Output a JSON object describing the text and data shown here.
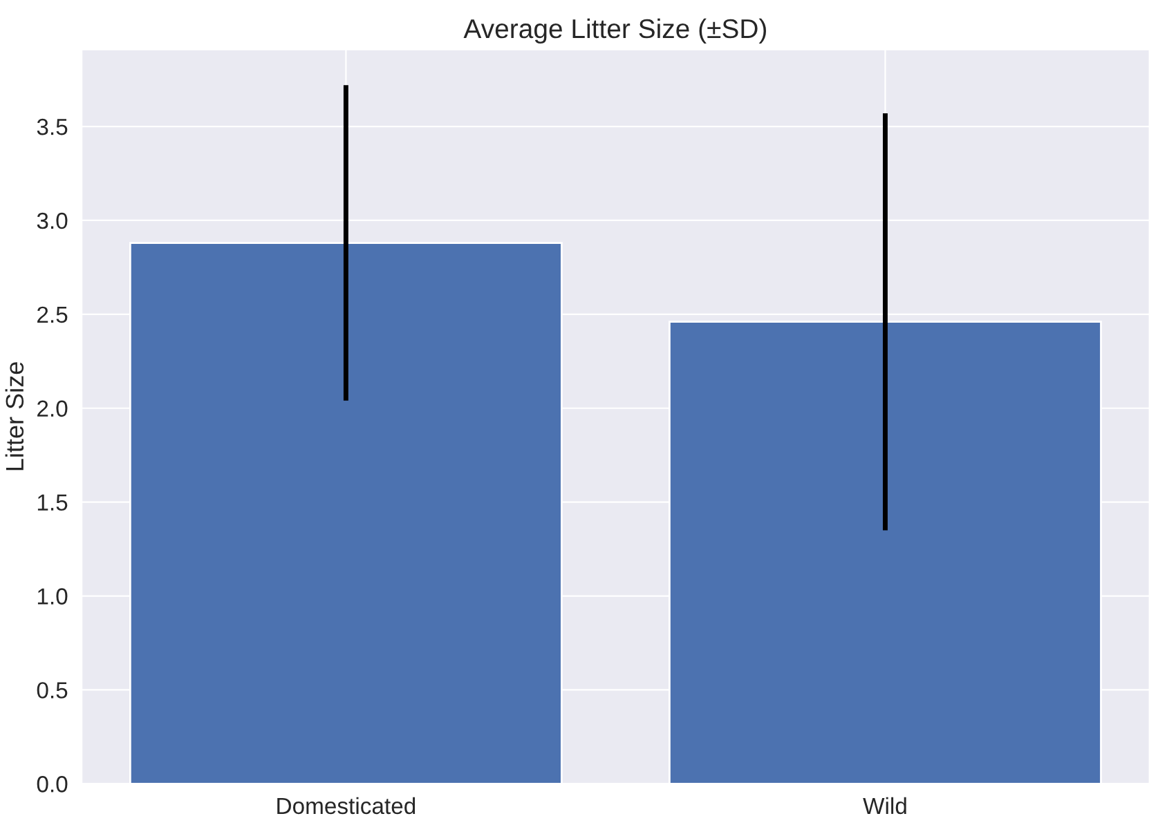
{
  "chart_data": {
    "type": "bar",
    "title": "Average Litter Size (±SD)",
    "ylabel": "Litter Size",
    "categories": [
      "Domesticated",
      "Wild"
    ],
    "values": [
      2.88,
      2.46
    ],
    "errors": [
      0.84,
      1.11
    ],
    "color": "#4c72b0",
    "ylim": [
      0,
      3.91
    ],
    "yticks": [
      {
        "value": 0,
        "label": "0.0"
      },
      0.5,
      {
        "value": 1,
        "label": "1.0"
      },
      1.5,
      {
        "value": 2,
        "label": "2.0"
      },
      2.5,
      {
        "value": 3,
        "label": "3.0"
      },
      3.5
    ],
    "grid": true
  }
}
